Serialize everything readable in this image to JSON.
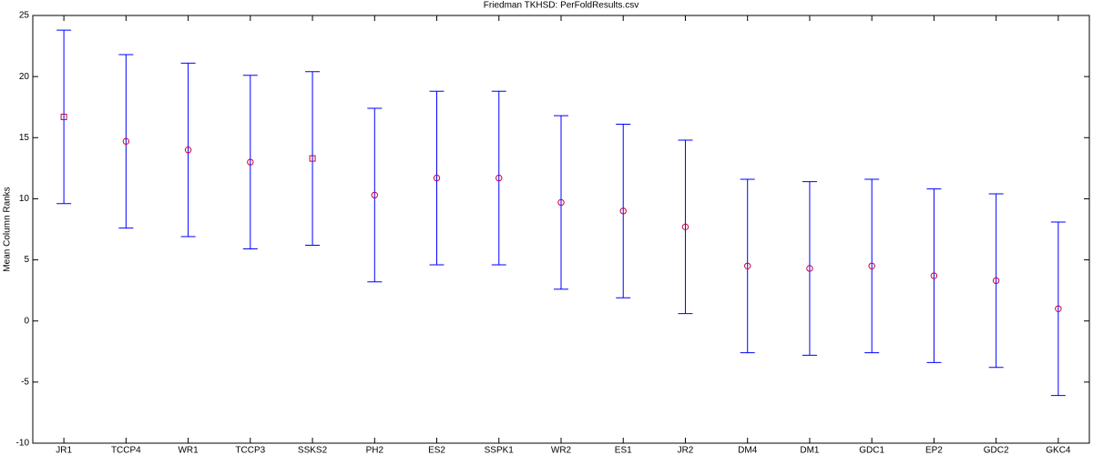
{
  "chart_data": {
    "type": "errorbar",
    "title": "Friedman TKHSD: PerFoldResults.csv",
    "ylabel": "Mean Column Ranks",
    "categories": [
      "JR1",
      "TCCP4",
      "WR1",
      "TCCP3",
      "SSKS2",
      "PH2",
      "ES2",
      "SSPK1",
      "WR2",
      "ES1",
      "JR2",
      "DM4",
      "DM1",
      "GDC1",
      "EP2",
      "GDC2",
      "GKC4"
    ],
    "values": [
      16.7,
      14.7,
      14.0,
      13.0,
      13.3,
      10.3,
      11.7,
      11.7,
      9.7,
      9.0,
      7.7,
      4.5,
      4.3,
      4.5,
      3.7,
      3.3,
      1.0
    ],
    "errors": [
      7.1,
      7.1,
      7.1,
      7.1,
      7.1,
      7.1,
      7.1,
      7.1,
      7.1,
      7.1,
      7.1,
      7.1,
      7.1,
      7.1,
      7.1,
      7.1,
      7.1
    ],
    "markers": [
      "square",
      "circle",
      "circle",
      "circle",
      "square",
      "circle",
      "circle",
      "circle",
      "circle",
      "circle",
      "circle",
      "circle",
      "circle",
      "circle",
      "circle",
      "circle",
      "circle"
    ],
    "color": "#0000ff",
    "marker_color": "#cc0044",
    "ylim": [
      -10,
      25
    ],
    "yticks": [
      -10,
      -5,
      0,
      5,
      10,
      15,
      20,
      25
    ]
  }
}
